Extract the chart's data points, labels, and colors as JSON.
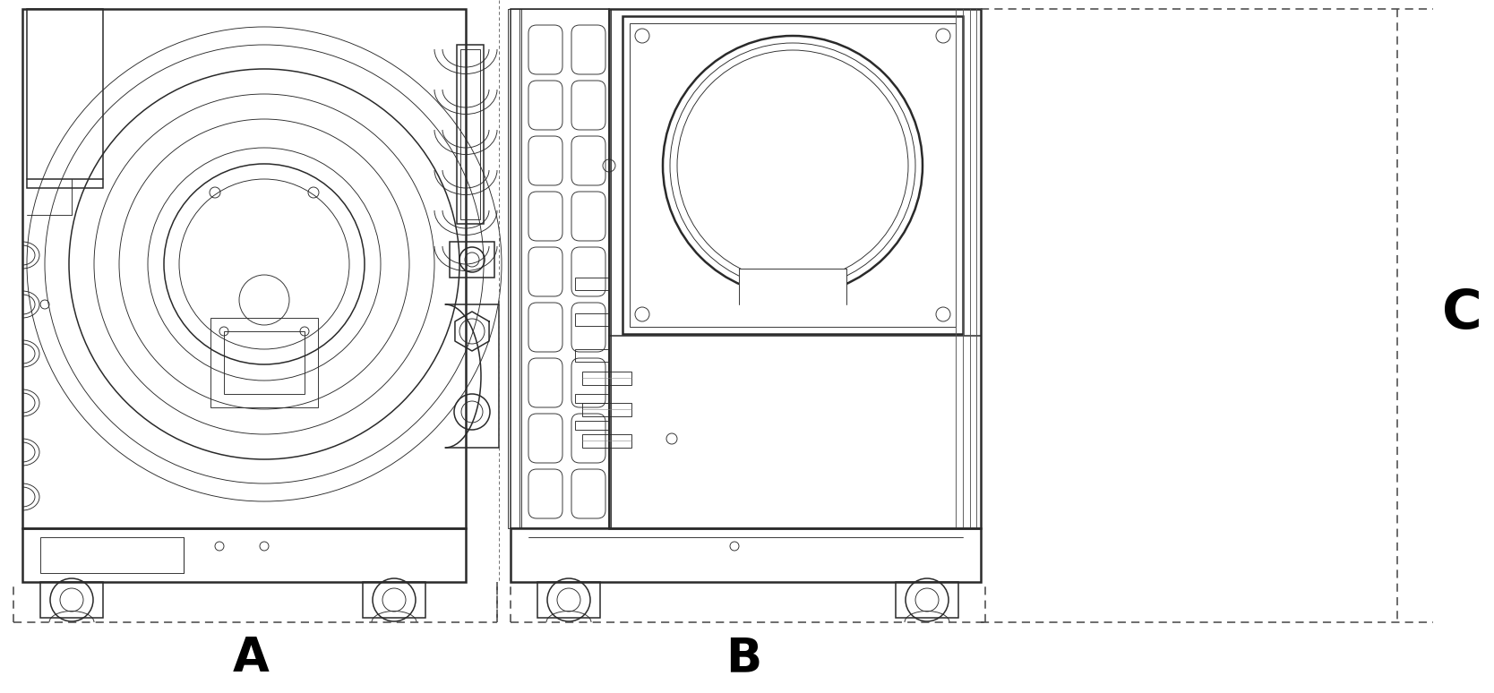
{
  "background_color": "#ffffff",
  "line_color": "#2a2a2a",
  "label_color": "#000000",
  "fig_width": 16.68,
  "fig_height": 7.74,
  "label_A": "A",
  "label_B": "B",
  "label_C": "C",
  "label_fontsize": 38
}
